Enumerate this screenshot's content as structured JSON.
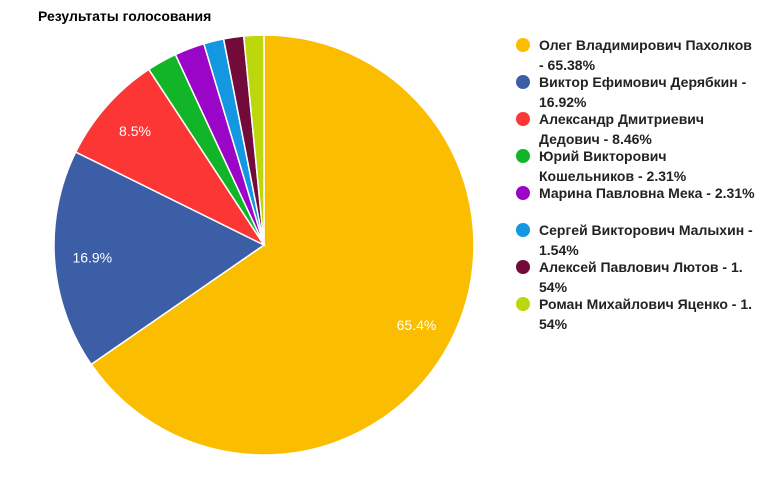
{
  "chart_data": {
    "type": "pie",
    "title": "Результаты голосования",
    "legend_position": "right",
    "slices": [
      {
        "name": "Олег Владимирович Пахолков",
        "value": 65.38,
        "label": "65.4%",
        "legend_lines": [
          "Олег Владимирович Пахолков",
          "- 65.38%"
        ],
        "color": "#fbbd00"
      },
      {
        "name": "Виктор Ефимович Дерябкин",
        "value": 16.92,
        "label": "16.9%",
        "legend_lines": [
          "Виктор Ефимович Дерябкин -",
          "16.92%"
        ],
        "color": "#3b5ea6"
      },
      {
        "name": "Александр Дмитриевич Дедович",
        "value": 8.46,
        "label": "8.5%",
        "legend_lines": [
          "Александр Дмитриевич",
          "Дедович - 8.46%"
        ],
        "color": "#fb3635"
      },
      {
        "name": "Юрий Викторович Кошельников",
        "value": 2.31,
        "label": "",
        "legend_lines": [
          "Юрий Викторович",
          "Кошельников - 2.31%"
        ],
        "color": "#11b527"
      },
      {
        "name": "Марина Павловна Мека",
        "value": 2.31,
        "label": "",
        "legend_lines": [
          "Марина Павловна Мека - 2.31%"
        ],
        "color": "#9b05c8"
      },
      {
        "name": "Сергей Викторович Малыхин",
        "value": 1.54,
        "label": "",
        "legend_lines": [
          "Сергей Викторович Малыхин -",
          "1.54%"
        ],
        "color": "#1297e0"
      },
      {
        "name": "Алексей Павлович Лютов",
        "value": 1.54,
        "label": "",
        "legend_lines": [
          "Алексей Павлович Лютов - 1.",
          "54%"
        ],
        "color": "#720a3a"
      },
      {
        "name": "Роман Михайлович Яценко",
        "value": 1.54,
        "label": "",
        "legend_lines": [
          "Роман Михайлович Яценко - 1.",
          "54%"
        ],
        "color": "#bcd70c"
      }
    ]
  }
}
